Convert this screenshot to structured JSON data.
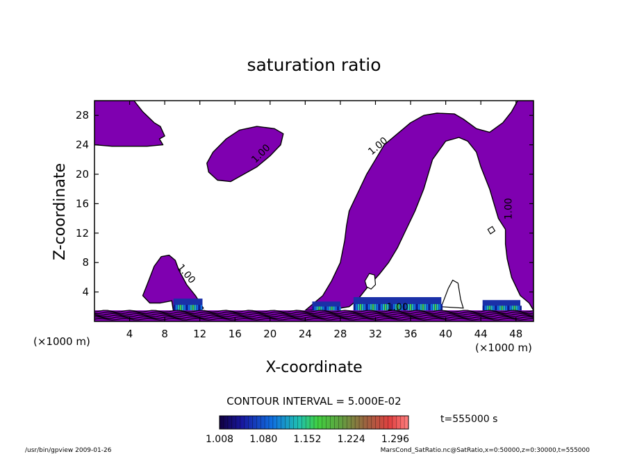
{
  "chart_data": {
    "type": "contour",
    "title": "saturation ratio",
    "xlabel": "X-coordinate",
    "ylabel": "Z-coordinate",
    "x_unit": "(×1000 m)",
    "y_unit": "(×1000 m)",
    "xlim": [
      0,
      50
    ],
    "ylim": [
      0,
      30
    ],
    "x_ticks": [
      4,
      8,
      12,
      16,
      20,
      24,
      28,
      32,
      36,
      40,
      44,
      48
    ],
    "y_ticks": [
      4,
      8,
      12,
      16,
      20,
      24,
      28
    ],
    "contour_label": "1.00",
    "contour_interval_text": "CONTOUR INTERVAL = 5.000E-02",
    "time_text": "t=555000 s",
    "colorbar": {
      "tick_labels": [
        "1.008",
        "1.080",
        "1.152",
        "1.224",
        "1.296"
      ],
      "min": 1.008,
      "max": 1.296
    },
    "fill_color": "#7f00b0",
    "regions": [
      {
        "name": "top-left-region",
        "points": [
          [
            0,
            30
          ],
          [
            4.5,
            30
          ],
          [
            5.5,
            28.5
          ],
          [
            6.8,
            27
          ],
          [
            7.5,
            26.5
          ],
          [
            8,
            25.2
          ],
          [
            7.4,
            24.8
          ],
          [
            7.8,
            24
          ],
          [
            6,
            23.8
          ],
          [
            2,
            23.8
          ],
          [
            0,
            24
          ]
        ]
      },
      {
        "name": "upper-blob",
        "points": [
          [
            12.8,
            21.5
          ],
          [
            13.5,
            23
          ],
          [
            15,
            24.8
          ],
          [
            16.5,
            26
          ],
          [
            18.5,
            26.5
          ],
          [
            20.5,
            26.2
          ],
          [
            21.5,
            25.5
          ],
          [
            21.2,
            24
          ],
          [
            20,
            22.5
          ],
          [
            18.5,
            21
          ],
          [
            17,
            20
          ],
          [
            15.5,
            19
          ],
          [
            14,
            19.2
          ],
          [
            13,
            20.3
          ]
        ]
      },
      {
        "name": "small-left-blob",
        "points": [
          [
            5.5,
            3.5
          ],
          [
            6,
            5
          ],
          [
            6.8,
            7.5
          ],
          [
            7.6,
            8.8
          ],
          [
            8.5,
            9
          ],
          [
            9.2,
            8.3
          ],
          [
            9.6,
            7
          ],
          [
            10.5,
            5
          ],
          [
            11.5,
            3.5
          ],
          [
            12.4,
            1.8
          ],
          [
            12,
            1.5
          ],
          [
            9,
            1.3
          ],
          [
            8.8,
            2.8
          ],
          [
            7.5,
            2.5
          ],
          [
            6.3,
            2.5
          ]
        ]
      },
      {
        "name": "big-right-region",
        "points": [
          [
            24,
            1.5
          ],
          [
            25,
            2.5
          ],
          [
            26,
            3.5
          ],
          [
            27,
            5.5
          ],
          [
            28,
            8
          ],
          [
            28.5,
            11
          ],
          [
            28.7,
            13
          ],
          [
            29,
            15
          ],
          [
            30,
            17.5
          ],
          [
            31,
            20
          ],
          [
            32,
            22
          ],
          [
            33,
            24
          ],
          [
            34.5,
            25.5
          ],
          [
            36,
            27
          ],
          [
            37.5,
            28
          ],
          [
            39,
            28.3
          ],
          [
            41,
            28.2
          ],
          [
            42,
            27.5
          ],
          [
            43.5,
            26.2
          ],
          [
            45,
            25.7
          ],
          [
            46.5,
            27
          ],
          [
            47.5,
            28.5
          ],
          [
            48.2,
            30
          ],
          [
            50,
            30
          ],
          [
            50,
            1.5
          ],
          [
            49.5,
            2.5
          ],
          [
            48.5,
            3.5
          ],
          [
            47.5,
            6
          ],
          [
            47,
            8.5
          ],
          [
            46.8,
            10.5
          ],
          [
            46.8,
            12.5
          ],
          [
            46,
            14
          ],
          [
            45.5,
            16
          ],
          [
            45,
            18
          ],
          [
            44,
            21
          ],
          [
            43.5,
            23
          ],
          [
            42.5,
            24.5
          ],
          [
            41.5,
            25
          ],
          [
            40,
            24.5
          ],
          [
            38.5,
            22
          ],
          [
            37.5,
            18
          ],
          [
            36.5,
            15
          ],
          [
            35.5,
            12.5
          ],
          [
            34.5,
            10
          ],
          [
            33.5,
            8
          ],
          [
            32.5,
            6.5
          ],
          [
            31,
            4.5
          ],
          [
            30,
            3
          ],
          [
            29,
            2
          ],
          [
            27,
            1.6
          ]
        ]
      }
    ],
    "holes": [
      {
        "name": "right-small-hole",
        "points": [
          [
            44.8,
            12.5
          ],
          [
            45.3,
            12.9
          ],
          [
            45.6,
            12.3
          ],
          [
            45.1,
            11.9
          ]
        ]
      },
      {
        "name": "mid-small-hole",
        "points": [
          [
            30.8,
            5.5
          ],
          [
            31.3,
            6.5
          ],
          [
            31.9,
            6.3
          ],
          [
            32,
            5
          ],
          [
            31.5,
            4.4
          ],
          [
            31,
            4.7
          ]
        ]
      },
      {
        "name": "right-notch-hole",
        "points": [
          [
            39.5,
            2
          ],
          [
            40.3,
            4.5
          ],
          [
            40.8,
            5.6
          ],
          [
            41.4,
            5.2
          ],
          [
            41.7,
            3
          ],
          [
            42,
            1.8
          ]
        ]
      }
    ],
    "highlight_bands": [
      {
        "x0": 9,
        "x1": 12.3,
        "level": 0.4
      },
      {
        "x0": 24.8,
        "x1": 28,
        "level": 0.3
      },
      {
        "x0": 29.5,
        "x1": 39.5,
        "level": 0.45
      },
      {
        "x0": 44.2,
        "x1": 48.5,
        "level": 0.35
      }
    ],
    "contour_labels": [
      {
        "text": "1.00",
        "x": 19.2,
        "y": 22.5,
        "angle": -45
      },
      {
        "text": "1.00",
        "x": 32.5,
        "y": 23.5,
        "angle": -40
      },
      {
        "text": "1.00",
        "x": 47.5,
        "y": 15.3,
        "angle": -90
      },
      {
        "text": "1.00",
        "x": 10.2,
        "y": 6.2,
        "angle": 50
      },
      {
        "text": "1.00",
        "x": 34.5,
        "y": 1.5,
        "angle": 0
      }
    ]
  },
  "footer": {
    "left": "/usr/bin/gpview   2009-01-26",
    "right": "MarsCond_SatRatio.nc@SatRatio,x=0:50000,z=0:30000,t=555000"
  }
}
